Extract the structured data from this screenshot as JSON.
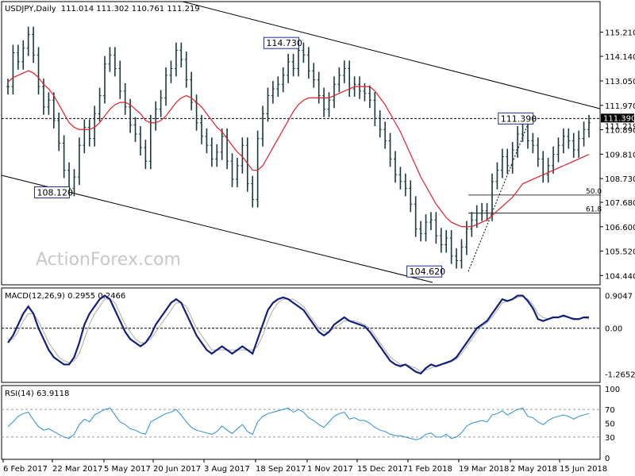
{
  "chart_data": [
    {
      "type": "ohlc",
      "title": "USDJPY,Daily",
      "header_values": "111.014 111.302 110.761 111.219",
      "ylim": [
        104.1,
        116.0
      ],
      "y_ticks": [
        "115.210",
        "114.140",
        "113.050",
        "111.970",
        "110.890",
        "109.810",
        "108.730",
        "107.680",
        "106.600",
        "105.520",
        "104.440"
      ],
      "current_price": "111.390",
      "current_price_2": "111.219",
      "x_ticks": [
        "6 Feb 2017",
        "22 Mar 2017",
        "5 May 2017",
        "20 Jun 2017",
        "3 Aug 2017",
        "18 Sep 2017",
        "1 Nov 2017",
        "15 Dec 2017",
        "1 Feb 2018",
        "19 Mar 2018",
        "2 May 2018",
        "15 Jun 2018"
      ],
      "annotations": [
        "114.730",
        "108.120",
        "111.390",
        "104.620"
      ],
      "fib_levels": [
        {
          "label": "50.0",
          "value": 108.0
        },
        {
          "label": "61.8",
          "value": 107.2
        }
      ],
      "watermark": "ActionForex.com",
      "series": [
        {
          "name": "price",
          "values": [
            112.8,
            114.3,
            113.9,
            114.5,
            115.1,
            114.2,
            112.8,
            111.9,
            112.2,
            111.3,
            110.3,
            109.1,
            108.3,
            108.8,
            110.2,
            111.0,
            110.5,
            111.6,
            112.4,
            113.8,
            114.2,
            113.6,
            112.6,
            111.9,
            111.1,
            110.7,
            110.1,
            109.5,
            111.2,
            111.8,
            112.3,
            113.3,
            113.6,
            114.4,
            114.0,
            113.1,
            112.1,
            111.2,
            110.6,
            110.2,
            109.6,
            109.9,
            110.6,
            109.5,
            108.7,
            109.3,
            110.2,
            108.5,
            107.8,
            110.5,
            111.6,
            112.4,
            112.7,
            112.9,
            113.3,
            113.9,
            113.6,
            114.4,
            114.2,
            113.5,
            113.1,
            112.4,
            111.8,
            112.2,
            112.9,
            113.3,
            113.6,
            112.7,
            112.9,
            112.6,
            112.5,
            112.2,
            111.4,
            110.9,
            110.4,
            109.6,
            108.9,
            108.6,
            108.3,
            107.6,
            106.5,
            106.3,
            106.8,
            106.9,
            106.2,
            105.8,
            106.1,
            105.3,
            105.1,
            105.7,
            106.5,
            106.9,
            107.2,
            107.3,
            107.2,
            108.6,
            109.1,
            109.7,
            109.3,
            110.0,
            110.7,
            111.2,
            110.4,
            110.2,
            109.6,
            108.9,
            109.3,
            109.8,
            110.2,
            110.6,
            110.4,
            110.0,
            110.5,
            110.9,
            111.2
          ]
        },
        {
          "name": "MA",
          "values": [
            113.0,
            113.2,
            113.3,
            113.4,
            113.5,
            113.4,
            113.2,
            112.9,
            112.7,
            112.4,
            112.0,
            111.6,
            111.2,
            111.0,
            110.9,
            110.9,
            110.9,
            111.0,
            111.2,
            111.5,
            111.8,
            112.0,
            112.1,
            112.1,
            112.0,
            111.8,
            111.6,
            111.3,
            111.2,
            111.2,
            111.3,
            111.5,
            111.8,
            112.1,
            112.3,
            112.4,
            112.3,
            112.1,
            111.9,
            111.6,
            111.3,
            111.0,
            110.8,
            110.5,
            110.2,
            109.9,
            109.7,
            109.4,
            109.1,
            109.1,
            109.3,
            109.7,
            110.1,
            110.5,
            110.9,
            111.3,
            111.7,
            112.0,
            112.2,
            112.3,
            112.3,
            112.3,
            112.3,
            112.3,
            112.4,
            112.5,
            112.6,
            112.7,
            112.8,
            112.8,
            112.8,
            112.8,
            112.6,
            112.3,
            112.0,
            111.6,
            111.2,
            110.8,
            110.3,
            109.8,
            109.3,
            108.8,
            108.4,
            108.0,
            107.6,
            107.3,
            107.0,
            106.8,
            106.7,
            106.6,
            106.6,
            106.6,
            106.7,
            106.8,
            106.9,
            107.1,
            107.3,
            107.5,
            107.7,
            107.9,
            108.2,
            108.5,
            108.6,
            108.7,
            108.8,
            108.9,
            109.0,
            109.1,
            109.2,
            109.3,
            109.4,
            109.5,
            109.6,
            109.7,
            109.8
          ]
        }
      ]
    },
    {
      "type": "line",
      "title": "MACD(12,26,9) 0.2955 0.2466",
      "ylim": [
        -1.45,
        1.0
      ],
      "y_ticks": [
        "0.9047",
        "0.00",
        "-1.2652"
      ],
      "series": [
        {
          "name": "MACD",
          "values": [
            -0.4,
            -0.2,
            0.1,
            0.4,
            0.6,
            0.4,
            0.0,
            -0.3,
            -0.6,
            -0.8,
            -0.9,
            -1.0,
            -1.0,
            -0.8,
            -0.4,
            0.1,
            0.4,
            0.6,
            0.8,
            0.9,
            0.8,
            0.5,
            0.2,
            -0.1,
            -0.3,
            -0.4,
            -0.5,
            -0.4,
            -0.2,
            0.1,
            0.3,
            0.5,
            0.7,
            0.8,
            0.7,
            0.4,
            0.1,
            -0.2,
            -0.4,
            -0.6,
            -0.7,
            -0.6,
            -0.5,
            -0.6,
            -0.7,
            -0.6,
            -0.5,
            -0.6,
            -0.7,
            -0.3,
            0.1,
            0.5,
            0.7,
            0.8,
            0.85,
            0.8,
            0.7,
            0.6,
            0.5,
            0.3,
            0.1,
            -0.1,
            -0.2,
            -0.1,
            0.1,
            0.2,
            0.3,
            0.2,
            0.15,
            0.1,
            0.05,
            -0.1,
            -0.3,
            -0.5,
            -0.7,
            -0.9,
            -1.0,
            -1.05,
            -1.0,
            -1.1,
            -1.2,
            -1.25,
            -1.1,
            -1.0,
            -1.05,
            -1.0,
            -0.95,
            -0.9,
            -0.8,
            -0.6,
            -0.4,
            -0.2,
            0.0,
            0.1,
            0.2,
            0.4,
            0.6,
            0.8,
            0.75,
            0.8,
            0.9,
            0.9,
            0.75,
            0.55,
            0.25,
            0.2,
            0.25,
            0.3,
            0.3,
            0.35,
            0.3,
            0.25,
            0.25,
            0.3,
            0.3
          ]
        },
        {
          "name": "Signal",
          "values": [
            -0.3,
            -0.3,
            -0.1,
            0.2,
            0.4,
            0.4,
            0.2,
            -0.1,
            -0.4,
            -0.6,
            -0.8,
            -0.9,
            -0.95,
            -0.9,
            -0.7,
            -0.3,
            0.1,
            0.4,
            0.6,
            0.8,
            0.8,
            0.7,
            0.4,
            0.1,
            -0.1,
            -0.3,
            -0.4,
            -0.4,
            -0.3,
            -0.1,
            0.1,
            0.3,
            0.5,
            0.7,
            0.7,
            0.6,
            0.3,
            0.0,
            -0.2,
            -0.4,
            -0.6,
            -0.6,
            -0.6,
            -0.6,
            -0.6,
            -0.6,
            -0.6,
            -0.6,
            -0.6,
            -0.5,
            -0.2,
            0.2,
            0.5,
            0.7,
            0.8,
            0.8,
            0.8,
            0.7,
            0.6,
            0.4,
            0.2,
            0.0,
            -0.1,
            -0.1,
            0.0,
            0.1,
            0.2,
            0.2,
            0.2,
            0.15,
            0.1,
            0.0,
            -0.2,
            -0.4,
            -0.6,
            -0.8,
            -0.9,
            -1.0,
            -1.0,
            -1.05,
            -1.1,
            -1.2,
            -1.15,
            -1.1,
            -1.05,
            -1.0,
            -0.98,
            -0.92,
            -0.85,
            -0.7,
            -0.5,
            -0.3,
            -0.1,
            0.05,
            0.15,
            0.3,
            0.5,
            0.7,
            0.75,
            0.8,
            0.85,
            0.88,
            0.8,
            0.65,
            0.4,
            0.3,
            0.25,
            0.28,
            0.3,
            0.32,
            0.3,
            0.28,
            0.26,
            0.28,
            0.25
          ]
        }
      ]
    },
    {
      "type": "line",
      "title": "RSI(14) 63.9118",
      "ylim": [
        0,
        100
      ],
      "y_ticks": [
        "100",
        "70",
        "50",
        "30",
        "0"
      ],
      "series": [
        {
          "name": "RSI",
          "values": [
            45,
            52,
            60,
            64,
            66,
            55,
            45,
            40,
            42,
            38,
            34,
            30,
            28,
            34,
            48,
            56,
            52,
            62,
            66,
            70,
            72,
            62,
            52,
            48,
            42,
            40,
            36,
            34,
            52,
            56,
            60,
            64,
            66,
            70,
            62,
            52,
            44,
            40,
            38,
            36,
            34,
            38,
            46,
            40,
            35,
            42,
            48,
            38,
            34,
            52,
            60,
            64,
            66,
            68,
            70,
            72,
            66,
            70,
            66,
            58,
            54,
            48,
            44,
            52,
            60,
            64,
            66,
            56,
            58,
            54,
            54,
            50,
            44,
            40,
            38,
            34,
            32,
            32,
            30,
            28,
            26,
            28,
            34,
            36,
            30,
            30,
            34,
            28,
            30,
            36,
            46,
            50,
            52,
            54,
            52,
            62,
            64,
            68,
            62,
            66,
            70,
            72,
            60,
            58,
            52,
            48,
            54,
            58,
            60,
            62,
            60,
            56,
            60,
            62,
            64
          ]
        }
      ]
    }
  ]
}
